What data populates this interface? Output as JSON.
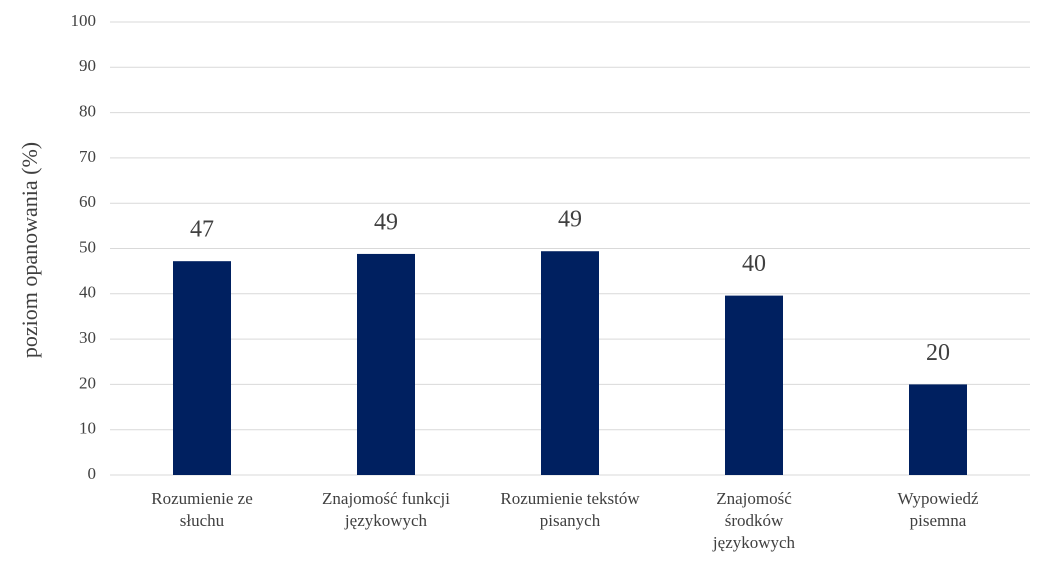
{
  "chart_data": {
    "type": "bar",
    "y_label": "poziom opanowania (%)",
    "categories": [
      "Rozumienie ze słuchu",
      "Znajomość funkcji językowych",
      "Rozumienie tekstów pisanych",
      "Znajomość środków językowych",
      "Wypowiedź pisemna"
    ],
    "values": [
      47.2,
      48.8,
      49.4,
      39.6,
      20
    ],
    "value_labels": [
      "47",
      "49",
      "49",
      "40",
      "20"
    ],
    "color": "#002060",
    "ylim": [
      0,
      100
    ],
    "yticks": [
      0,
      10,
      20,
      30,
      40,
      50,
      60,
      70,
      80,
      90,
      100
    ],
    "grid": true
  }
}
